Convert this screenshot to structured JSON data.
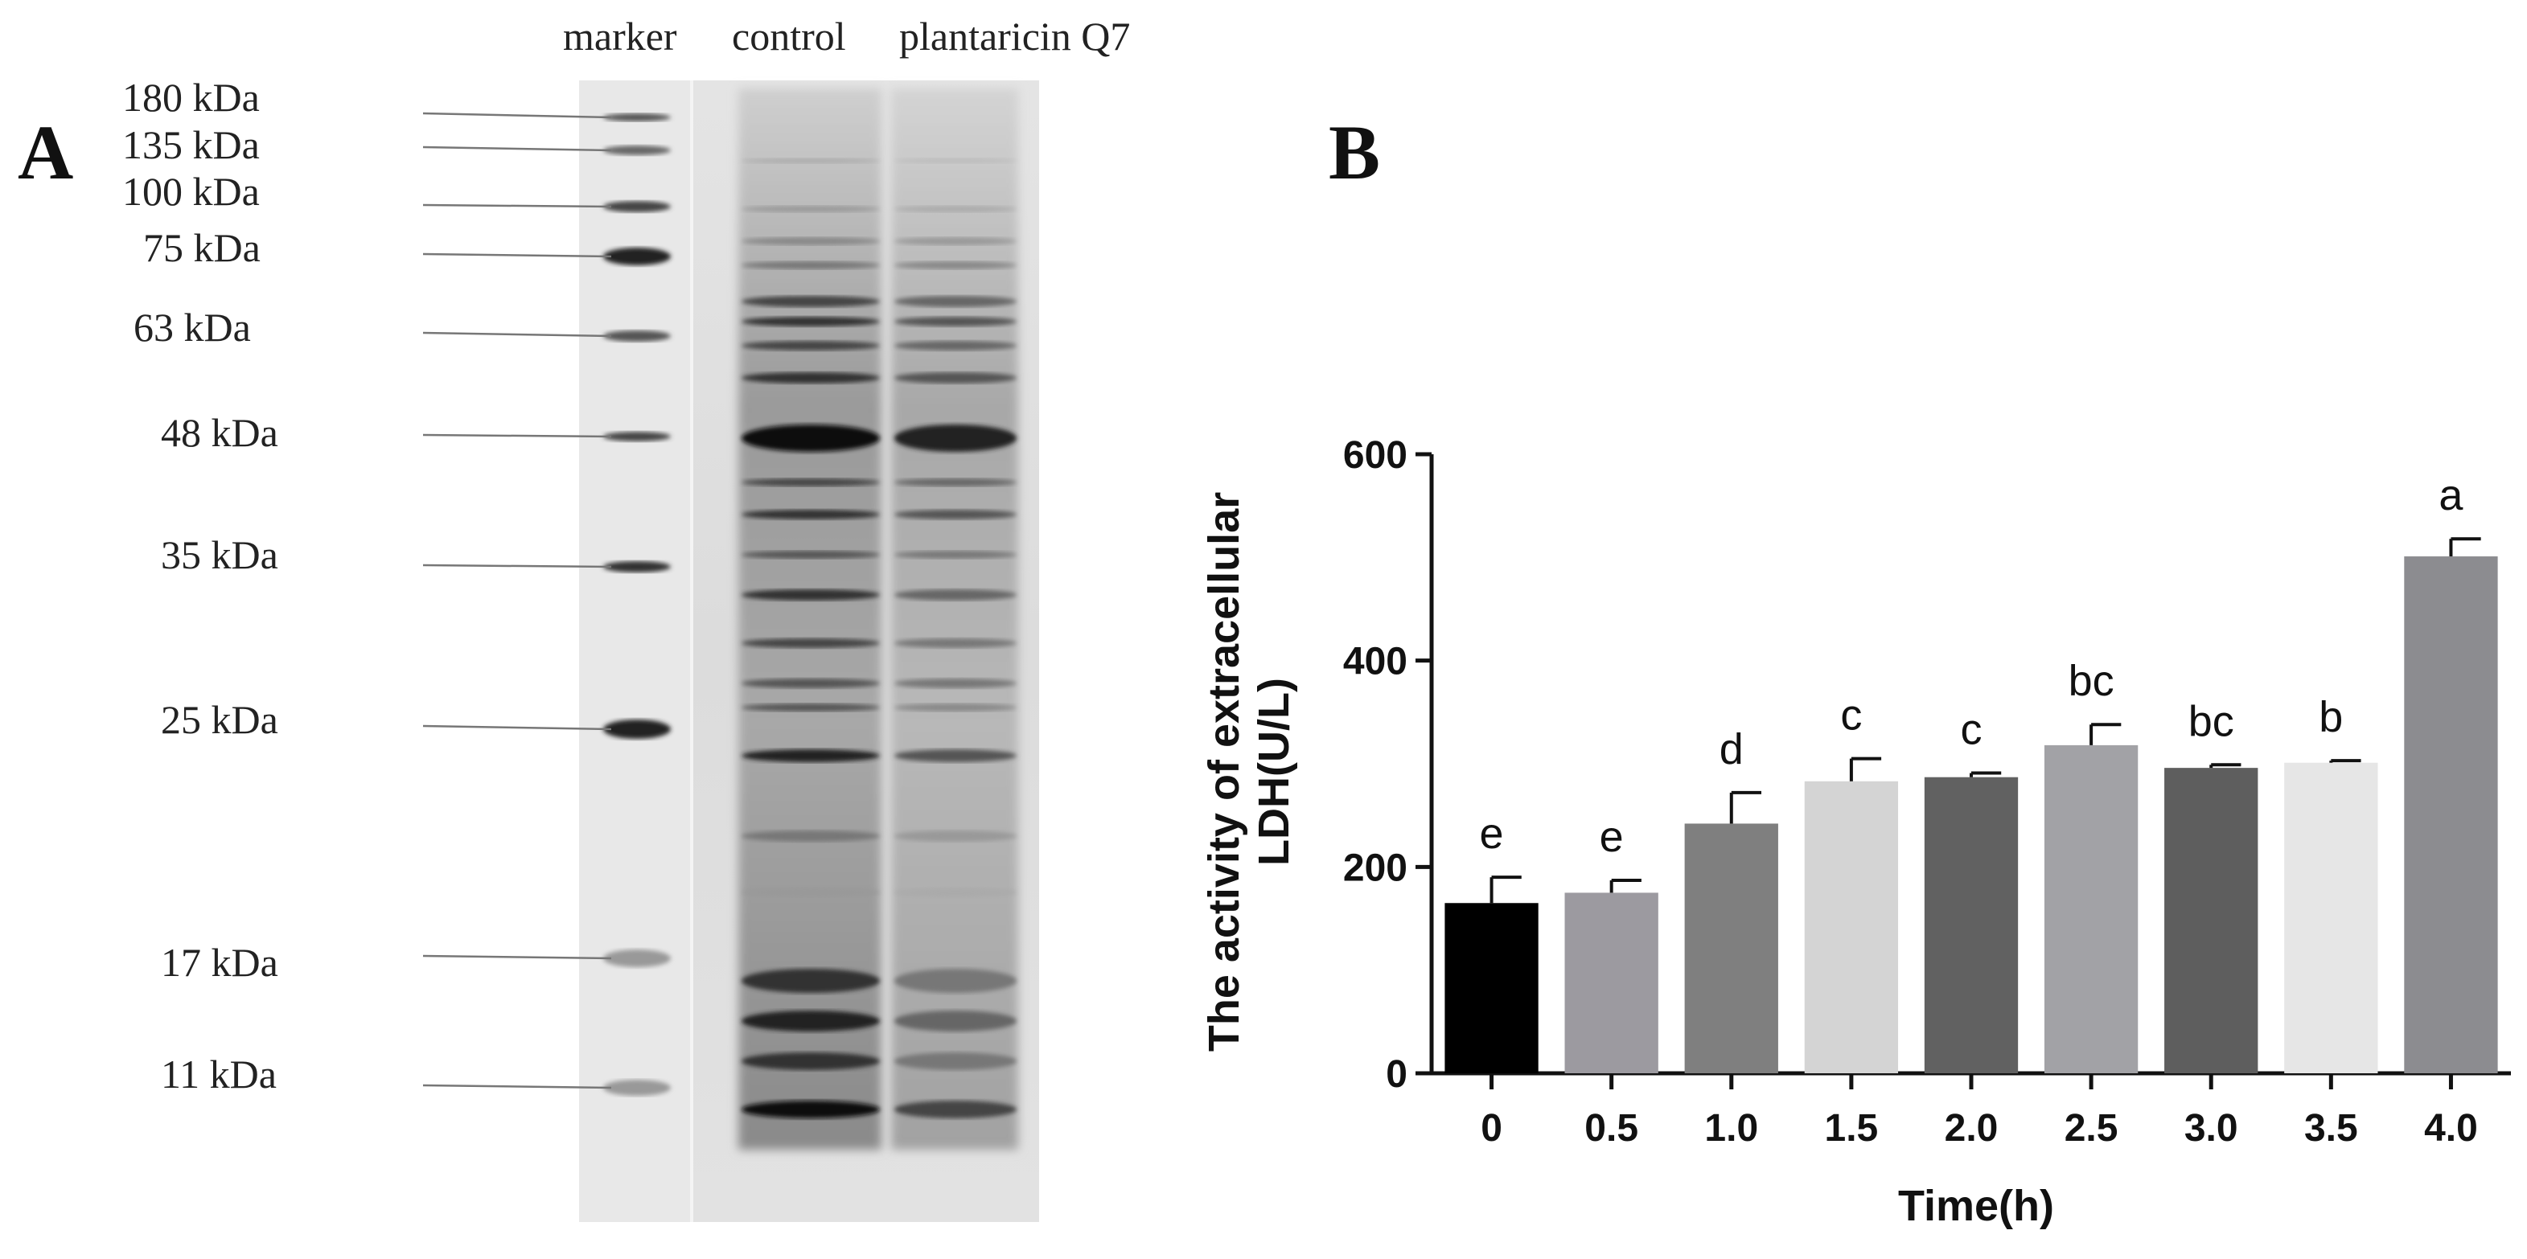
{
  "panel_a": {
    "letter": "A",
    "lane_labels": [
      "marker",
      "control",
      "plantaricin Q7"
    ],
    "markers": [
      {
        "label": "180 kDa",
        "kda": 180
      },
      {
        "label": "135 kDa",
        "kda": 135
      },
      {
        "label": "100 kDa",
        "kda": 100
      },
      {
        "label": "75 kDa",
        "kda": 75
      },
      {
        "label": "63 kDa",
        "kda": 63
      },
      {
        "label": "48 kDa",
        "kda": 48
      },
      {
        "label": "35 kDa",
        "kda": 35
      },
      {
        "label": "25 kDa",
        "kda": 25
      },
      {
        "label": "17 kDa",
        "kda": 17
      },
      {
        "label": "11 kDa",
        "kda": 11
      }
    ]
  },
  "panel_b": {
    "letter": "B"
  },
  "chart_data": {
    "type": "bar",
    "title": "",
    "xlabel": "Time(h)",
    "ylabel_line1": "The activity of extracellular",
    "ylabel_line2": "LDH(U/L)",
    "ylim": [
      0,
      600
    ],
    "yticks": [
      0,
      200,
      400,
      600
    ],
    "grid": false,
    "legend": "none",
    "categories": [
      "0",
      "0.5",
      "1.0",
      "1.5",
      "2.0",
      "2.5",
      "3.0",
      "3.5",
      "4.0"
    ],
    "values": [
      165,
      175,
      242,
      283,
      287,
      318,
      296,
      301,
      501
    ],
    "errors": [
      25,
      12,
      30,
      22,
      4,
      20,
      3,
      2,
      17
    ],
    "significance": [
      "e",
      "e",
      "d",
      "c",
      "c",
      "bc",
      "bc",
      "b",
      "a"
    ],
    "bar_colors": [
      "#000000",
      "#9c9aa0",
      "#7f7f7f",
      "#d4d4d4",
      "#616161",
      "#a2a2a6",
      "#5e5e5e",
      "#e6e6e6",
      "#8c8c90"
    ]
  }
}
